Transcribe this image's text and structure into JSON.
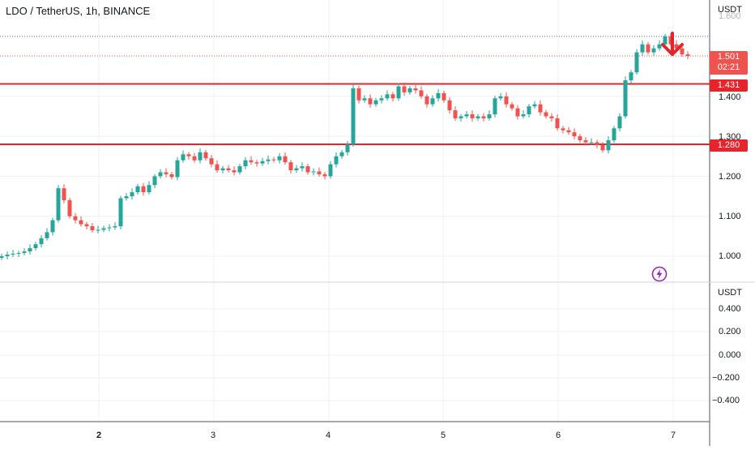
{
  "symbol": {
    "title": "LDO / TetherUS, 1h, BINANCE"
  },
  "colors": {
    "up": "#26a69a",
    "down": "#ef5350",
    "level": "#e5242b",
    "grid": "#eef0f3",
    "axis": "#50535e",
    "alert": "#9c27b0"
  },
  "price_axis": {
    "unit": "USDT",
    "ticks": [
      "1.600",
      "1.400",
      "1.300",
      "1.200",
      "1.100",
      "1.000"
    ]
  },
  "osc_axis": {
    "unit": "USDT",
    "ticks": [
      "0.400",
      "0.200",
      "0.000",
      "−0.200",
      "−0.400"
    ]
  },
  "time_axis": {
    "labels": [
      "2",
      "3",
      "4",
      "5",
      "6",
      "7"
    ]
  },
  "tags": {
    "last_price": "1.501",
    "countdown": "02:21",
    "resistance": "1.431",
    "support": "1.280"
  },
  "icons": {
    "alert": "lightning-alert-icon",
    "sell_signal": "down-arrow-icon"
  },
  "chart_data": {
    "type": "candlestick",
    "symbol": "LDO / TetherUS",
    "interval": "1h",
    "exchange": "BINANCE",
    "y_unit": "USDT",
    "ylim": [
      0.97,
      1.62
    ],
    "x_labels": [
      "2",
      "3",
      "4",
      "5",
      "6",
      "7"
    ],
    "horizontal_levels": [
      1.431,
      1.28
    ],
    "last_price": 1.501,
    "closes": [
      1.0,
      1.004,
      1.006,
      1.008,
      1.012,
      1.02,
      1.03,
      1.045,
      1.06,
      1.09,
      1.17,
      1.14,
      1.1,
      1.09,
      1.08,
      1.075,
      1.065,
      1.066,
      1.07,
      1.072,
      1.075,
      1.145,
      1.15,
      1.16,
      1.175,
      1.16,
      1.178,
      1.2,
      1.21,
      1.205,
      1.198,
      1.24,
      1.255,
      1.25,
      1.24,
      1.26,
      1.245,
      1.23,
      1.215,
      1.22,
      1.215,
      1.21,
      1.225,
      1.24,
      1.235,
      1.232,
      1.238,
      1.242,
      1.24,
      1.25,
      1.235,
      1.215,
      1.22,
      1.225,
      1.21,
      1.212,
      1.205,
      1.2,
      1.23,
      1.25,
      1.26,
      1.28,
      1.42,
      1.39,
      1.395,
      1.38,
      1.39,
      1.395,
      1.405,
      1.395,
      1.425,
      1.41,
      1.42,
      1.415,
      1.4,
      1.38,
      1.395,
      1.408,
      1.39,
      1.365,
      1.345,
      1.35,
      1.355,
      1.345,
      1.35,
      1.345,
      1.355,
      1.395,
      1.4,
      1.38,
      1.37,
      1.35,
      1.355,
      1.375,
      1.38,
      1.36,
      1.35,
      1.345,
      1.32,
      1.315,
      1.31,
      1.3,
      1.29,
      1.285,
      1.285,
      1.278,
      1.265,
      1.29,
      1.32,
      1.35,
      1.44,
      1.46,
      1.51,
      1.53,
      1.51,
      1.52,
      1.53,
      1.55,
      1.53,
      1.52,
      1.505,
      1.501
    ]
  }
}
